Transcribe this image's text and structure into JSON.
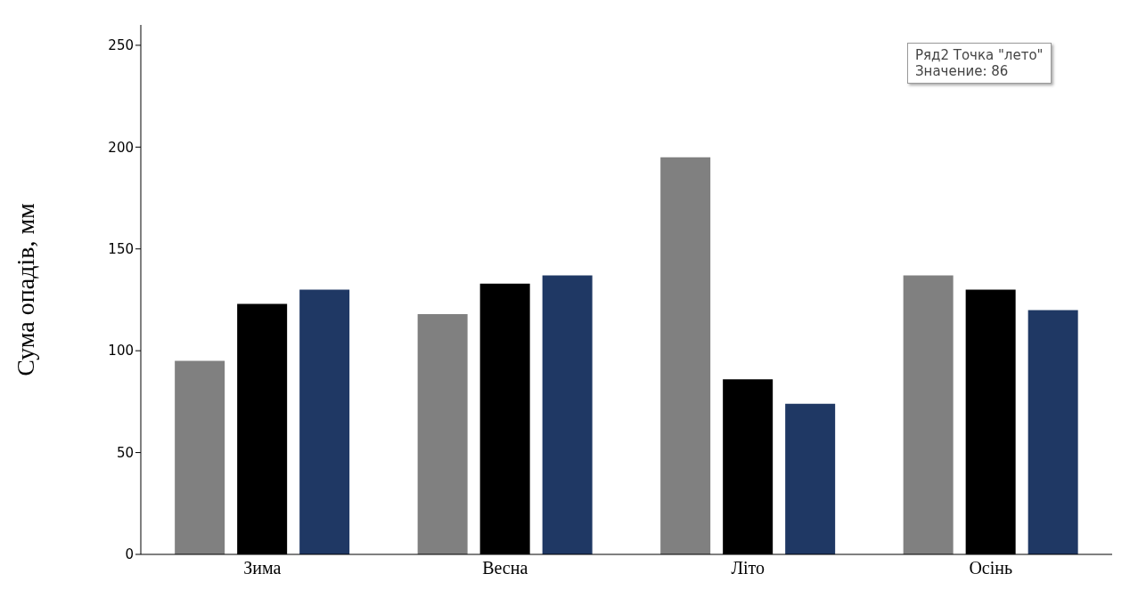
{
  "chart_data": {
    "type": "bar",
    "ylabel": "Сума опадів,  мм",
    "categories": [
      "Зима",
      "Весна",
      "Літо",
      "Осінь"
    ],
    "series": [
      {
        "color": "#808080",
        "values": [
          95,
          118,
          195,
          137
        ]
      },
      {
        "color": "#000000",
        "values": [
          123,
          133,
          86,
          130
        ]
      },
      {
        "color": "#1f3864",
        "values": [
          130,
          137,
          74,
          120
        ]
      }
    ],
    "ylim": [
      0,
      260
    ],
    "yticks": [
      0,
      50,
      100,
      150,
      200,
      250
    ],
    "grid": false,
    "legend": false,
    "annotations": [
      "Ряд2 Точка \"лето\"",
      "Значение: 86"
    ]
  }
}
